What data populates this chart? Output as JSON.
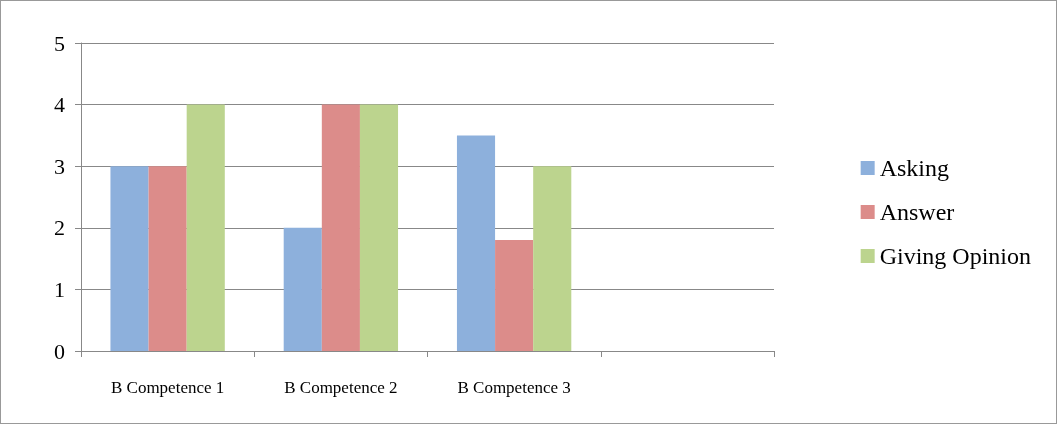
{
  "chart_data": {
    "type": "bar",
    "categories": [
      "B Competence 1",
      "B Competence 2",
      "B Competence 3",
      null
    ],
    "series": [
      {
        "name": "Asking",
        "color": "#8db0dc",
        "values": [
          3,
          2,
          3.5,
          null
        ]
      },
      {
        "name": "Answer",
        "color": "#dc8c8a",
        "values": [
          3,
          4,
          1.8,
          null
        ]
      },
      {
        "name": "Giving Opinion",
        "color": "#bcd48e",
        "values": [
          4,
          4,
          3,
          null
        ]
      }
    ],
    "ylim": [
      0,
      5
    ],
    "yticks": [
      0,
      1,
      2,
      3,
      4,
      5
    ],
    "grid": "y",
    "legend": "right"
  }
}
